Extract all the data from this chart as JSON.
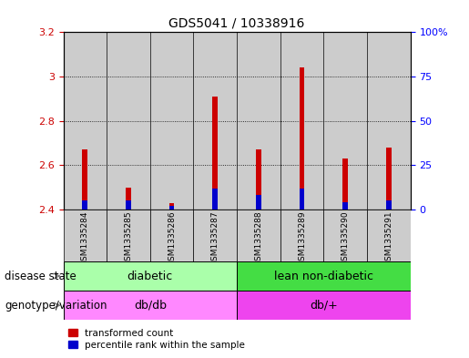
{
  "title": "GDS5041 / 10338916",
  "samples": [
    "GSM1335284",
    "GSM1335285",
    "GSM1335286",
    "GSM1335287",
    "GSM1335288",
    "GSM1335289",
    "GSM1335290",
    "GSM1335291"
  ],
  "transformed_count": [
    2.67,
    2.5,
    2.43,
    2.91,
    2.67,
    3.04,
    2.63,
    2.68
  ],
  "percentile_rank": [
    5,
    5,
    2,
    12,
    8,
    12,
    4,
    5
  ],
  "ylim_left": [
    2.4,
    3.2
  ],
  "ylim_right": [
    0,
    100
  ],
  "yticks_left": [
    2.4,
    2.6,
    2.8,
    3.0,
    3.2
  ],
  "yticks_right": [
    0,
    25,
    50,
    75,
    100
  ],
  "ytick_labels_right": [
    "0",
    "25",
    "50",
    "75",
    "100%"
  ],
  "disease_state_groups": [
    {
      "label": "diabetic",
      "start": 0,
      "end": 4,
      "color": "#AAFFAA"
    },
    {
      "label": "lean non-diabetic",
      "start": 4,
      "end": 8,
      "color": "#44DD44"
    }
  ],
  "genotype_groups": [
    {
      "label": "db/db",
      "start": 0,
      "end": 4,
      "color": "#FF88FF"
    },
    {
      "label": "db/+",
      "start": 4,
      "end": 8,
      "color": "#EE44EE"
    }
  ],
  "disease_state_label": "disease state",
  "genotype_label": "genotype/variation",
  "legend_transformed": "transformed count",
  "legend_percentile": "percentile rank within the sample",
  "red_color": "#CC0000",
  "blue_color": "#0000CC",
  "base_value": 2.4,
  "bg_color": "#CCCCCC",
  "bar_width": 0.12
}
